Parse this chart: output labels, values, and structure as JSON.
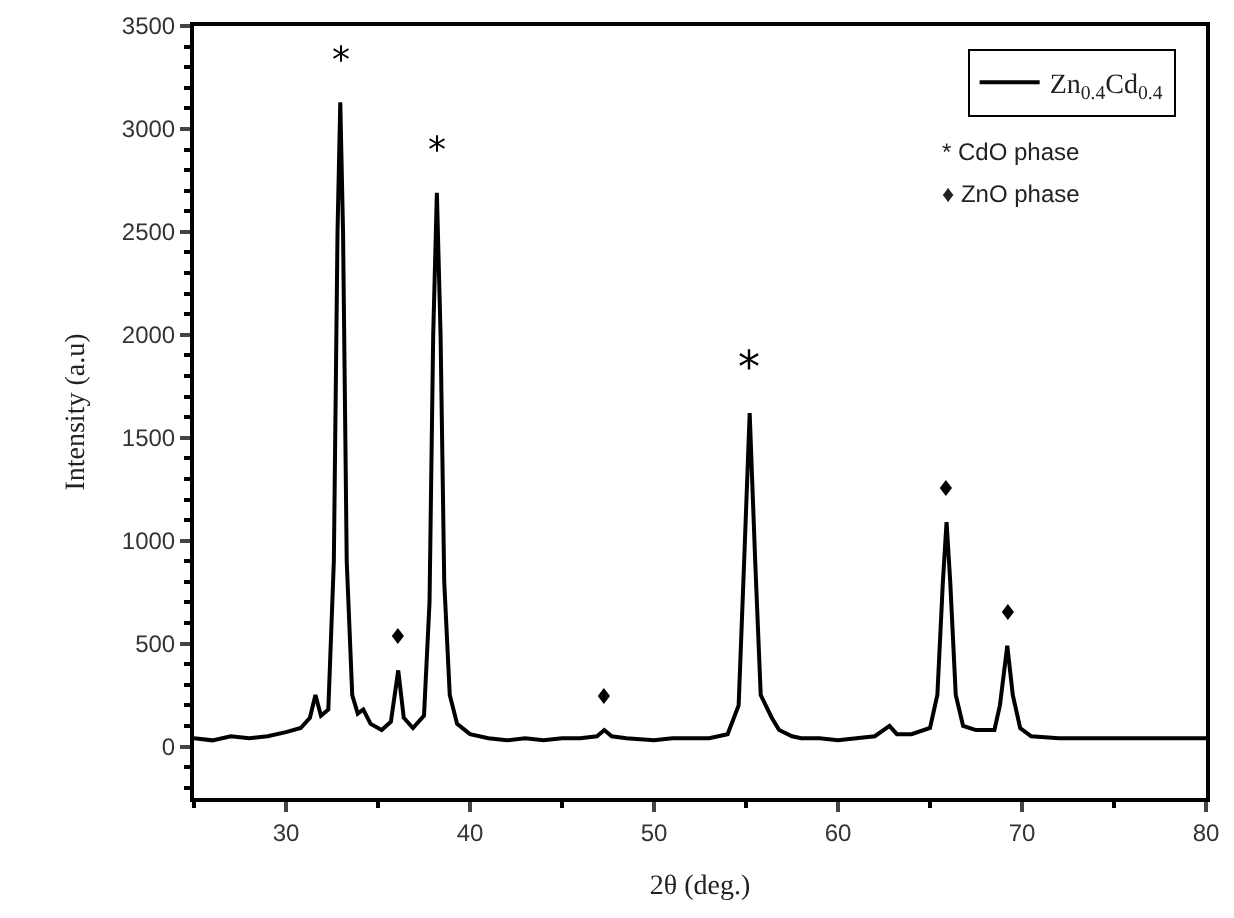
{
  "chart_data": {
    "type": "line",
    "xlabel": "2θ (deg.)",
    "ylabel": "Intensity (a.u)",
    "x": [
      25,
      26,
      27,
      28,
      29,
      30,
      30.8,
      31.3,
      31.6,
      31.9,
      32.3,
      32.6,
      32.8,
      32.95,
      33.1,
      33.3,
      33.6,
      33.9,
      34.2,
      34.6,
      35.2,
      35.7,
      36.1,
      36.4,
      36.9,
      37.5,
      37.8,
      38.0,
      38.2,
      38.4,
      38.6,
      38.9,
      39.3,
      40,
      41,
      42,
      43,
      44,
      45,
      46,
      46.9,
      47.3,
      47.7,
      48.5,
      50,
      51,
      52,
      53,
      54,
      54.6,
      54.9,
      55.2,
      55.5,
      55.8,
      56.4,
      56.8,
      57.5,
      58,
      59,
      60,
      61,
      62,
      62.8,
      63.2,
      64,
      65.0,
      65.4,
      65.7,
      65.9,
      66.1,
      66.4,
      66.8,
      67.5,
      68,
      68.5,
      68.8,
      69.2,
      69.5,
      69.9,
      70.5,
      72,
      74,
      76,
      78,
      80
    ],
    "series": [
      {
        "name": "Zn$_{0.4}$Cd$_{0.4}$",
        "color": "#000000",
        "values": [
          40,
          30,
          50,
          40,
          50,
          70,
          90,
          140,
          250,
          150,
          180,
          900,
          2500,
          3130,
          2500,
          900,
          250,
          160,
          180,
          110,
          80,
          120,
          370,
          140,
          90,
          150,
          700,
          2000,
          2690,
          2000,
          800,
          250,
          110,
          60,
          40,
          30,
          40,
          30,
          40,
          40,
          50,
          80,
          50,
          40,
          30,
          40,
          40,
          40,
          60,
          200,
          900,
          1620,
          900,
          250,
          140,
          80,
          50,
          40,
          40,
          30,
          40,
          50,
          100,
          60,
          60,
          90,
          250,
          800,
          1090,
          800,
          250,
          100,
          80,
          80,
          80,
          200,
          490,
          250,
          90,
          50,
          40,
          40,
          40,
          40,
          40
        ]
      }
    ],
    "xlim": [
      25,
      80
    ],
    "xticks": [
      30,
      40,
      50,
      60,
      70,
      80
    ],
    "ylim": [
      -250,
      3500
    ],
    "yticks": [
      0,
      500,
      1000,
      1500,
      2000,
      2500,
      3000,
      3500
    ],
    "legend": "top right",
    "marker": "none",
    "line_style": "solid",
    "annotations": [
      {
        "text": "*",
        "x": 32.95,
        "y": 3130
      },
      {
        "text": "*",
        "x": 38.2,
        "y": 2690
      },
      {
        "text": "*",
        "x": 55.2,
        "y": 1620
      },
      {
        "text": "♦",
        "x": 36.1,
        "y": 370
      },
      {
        "text": "♦",
        "x": 47.3,
        "y": 80
      },
      {
        "text": "♦",
        "x": 65.9,
        "y": 1090
      },
      {
        "text": "♦",
        "x": 69.2,
        "y": 490
      },
      "* CdO phase",
      "♦ ZnO phase"
    ]
  }
}
